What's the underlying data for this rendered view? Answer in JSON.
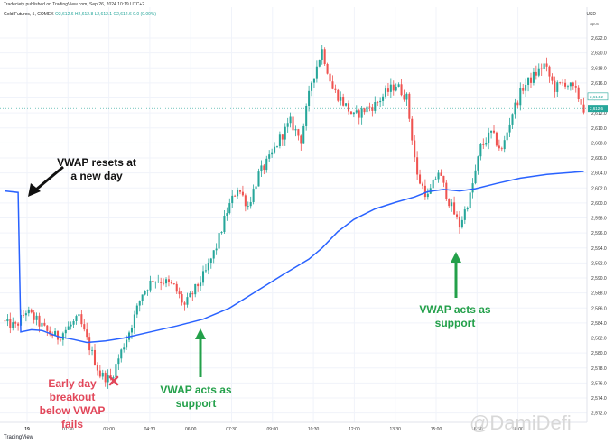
{
  "header": {
    "published": "Tradeciety published on TradingView.com, Sep 26, 2024 10:19 UTC+2",
    "symbol": "Gold Futures, 5, COMEX",
    "ohlc": "O2,612.6  H2,612.8  L2,612.1  C2,612.6  0.0 (0.00%)",
    "currency": "USD",
    "unit": "apox"
  },
  "footer": {
    "logo_text": "TradingView",
    "watermark": "@DamiDefi"
  },
  "annotations": {
    "vwap_reset": "VWAP resets at a new day",
    "breakout": "Early day breakout below VWAP fails",
    "support1": "VWAP acts as support",
    "support2": "VWAP acts as support"
  },
  "colors": {
    "up": "#26a69a",
    "down": "#ef5350",
    "vwap": "#2962ff",
    "arrow_green": "#23a04a",
    "text_red": "#e2475a"
  },
  "chart_data": {
    "type": "candlestick",
    "y_ticks": [
      2572,
      2574,
      2576,
      2578,
      2580,
      2582,
      2584,
      2586,
      2588,
      2590,
      2592,
      2594,
      2596,
      2598,
      2600,
      2602,
      2604,
      2606,
      2608,
      2610,
      2612,
      2614,
      2616,
      2618,
      2620,
      2622
    ],
    "ylim": [
      2571.5,
      2624
    ],
    "x_ticks": [
      "19",
      "01:30",
      "03:00",
      "04:30",
      "06:00",
      "07:30",
      "09:00",
      "10:30",
      "12:00",
      "13:30",
      "15:00",
      "16:30",
      "18:00"
    ],
    "price_labels": {
      "last": "2,612.6",
      "prev": "2,614.2"
    },
    "close_path": [
      [
        0,
        2584.0
      ],
      [
        4,
        2583.5
      ],
      [
        8,
        2585.6
      ],
      [
        12,
        2584.3
      ],
      [
        16,
        2582.8
      ],
      [
        20,
        2582.1
      ],
      [
        24,
        2583.4
      ],
      [
        28,
        2584.6
      ],
      [
        32,
        2580.8
      ],
      [
        36,
        2577.1
      ],
      [
        40,
        2576.5
      ],
      [
        44,
        2580.2
      ],
      [
        48,
        2583.8
      ],
      [
        52,
        2588.0
      ],
      [
        56,
        2589.8
      ],
      [
        60,
        2589.6
      ],
      [
        64,
        2588.8
      ],
      [
        68,
        2586.3
      ],
      [
        72,
        2588.5
      ],
      [
        76,
        2590.8
      ],
      [
        80,
        2594.2
      ],
      [
        84,
        2598.9
      ],
      [
        88,
        2602.1
      ],
      [
        92,
        2599.6
      ],
      [
        96,
        2603.8
      ],
      [
        100,
        2605.8
      ],
      [
        104,
        2608.6
      ],
      [
        108,
        2610.8
      ],
      [
        112,
        2608.4
      ],
      [
        116,
        2616.2
      ],
      [
        120,
        2620.4
      ],
      [
        124,
        2615.2
      ],
      [
        128,
        2613.4
      ],
      [
        132,
        2611.5
      ],
      [
        136,
        2612.4
      ],
      [
        140,
        2613.1
      ],
      [
        144,
        2614.6
      ],
      [
        148,
        2615.8
      ],
      [
        152,
        2614.0
      ],
      [
        156,
        2603.5
      ],
      [
        160,
        2600.8
      ],
      [
        164,
        2604.2
      ],
      [
        168,
        2600.2
      ],
      [
        172,
        2597.0
      ],
      [
        176,
        2600.9
      ],
      [
        180,
        2607.4
      ],
      [
        184,
        2609.3
      ],
      [
        188,
        2606.9
      ],
      [
        192,
        2612.1
      ],
      [
        196,
        2615.4
      ],
      [
        200,
        2616.9
      ],
      [
        204,
        2618.4
      ],
      [
        208,
        2615.3
      ],
      [
        212,
        2616.1
      ],
      [
        216,
        2614.8
      ],
      [
        219,
        2612.6
      ]
    ],
    "vwap": [
      [
        0,
        2601.6
      ],
      [
        5,
        2601.4
      ],
      [
        6,
        2582.8
      ],
      [
        10,
        2583.1
      ],
      [
        14,
        2583.0
      ],
      [
        20,
        2582.2
      ],
      [
        26,
        2581.8
      ],
      [
        31,
        2581.4
      ],
      [
        38,
        2581.6
      ],
      [
        45,
        2582.0
      ],
      [
        55,
        2582.8
      ],
      [
        65,
        2583.6
      ],
      [
        75,
        2584.5
      ],
      [
        85,
        2586.0
      ],
      [
        95,
        2588.2
      ],
      [
        105,
        2590.4
      ],
      [
        115,
        2592.5
      ],
      [
        120,
        2594.0
      ],
      [
        126,
        2596.2
      ],
      [
        132,
        2597.8
      ],
      [
        140,
        2599.2
      ],
      [
        148,
        2600.1
      ],
      [
        155,
        2600.8
      ],
      [
        160,
        2601.5
      ],
      [
        166,
        2601.8
      ],
      [
        172,
        2601.6
      ],
      [
        178,
        2601.9
      ],
      [
        186,
        2602.6
      ],
      [
        195,
        2603.3
      ],
      [
        205,
        2603.8
      ],
      [
        212,
        2604.0
      ],
      [
        219,
        2604.2
      ]
    ],
    "grid": true,
    "series": [
      {
        "name": "VWAP"
      }
    ]
  }
}
